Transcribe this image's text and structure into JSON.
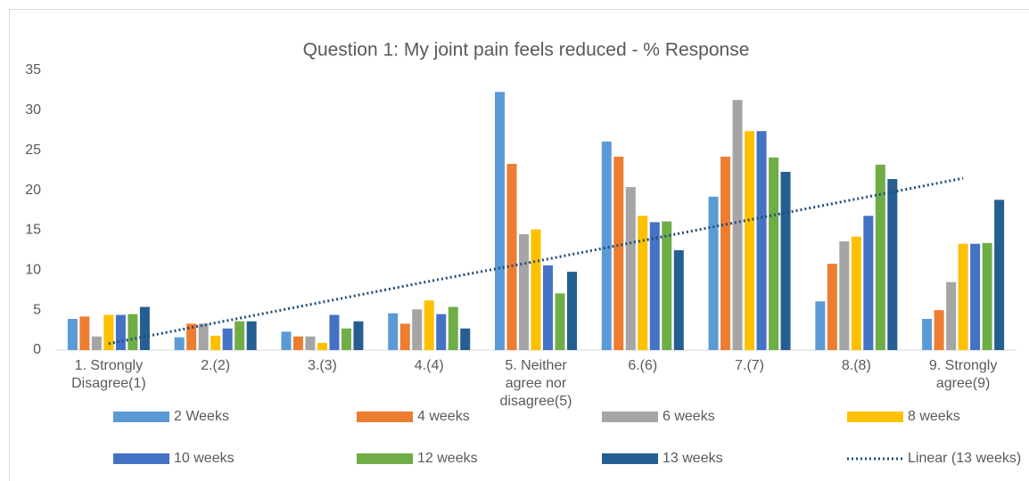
{
  "chart_data": {
    "type": "bar",
    "title": "Question 1: My joint pain feels reduced - % Response",
    "categories": [
      "1. Strongly Disagree(1)",
      "2.(2)",
      "3.(3)",
      "4.(4)",
      "5. Neither agree nor disagree(5)",
      "6.(6)",
      "7.(7)",
      "8.(8)",
      "9. Strongly agree(9)"
    ],
    "series": [
      {
        "name": "2 Weeks",
        "color": "#5b9bd5",
        "values": [
          3.9,
          1.6,
          2.3,
          4.6,
          32.3,
          26.1,
          19.2,
          6.1,
          3.9
        ]
      },
      {
        "name": "4 weeks",
        "color": "#ed7d31",
        "values": [
          4.2,
          3.3,
          1.7,
          3.3,
          23.3,
          24.2,
          24.2,
          10.8,
          5.0
        ]
      },
      {
        "name": "6 weeks",
        "color": "#a5a5a5",
        "values": [
          1.7,
          3.3,
          1.7,
          5.1,
          14.5,
          20.4,
          31.3,
          13.6,
          8.5
        ]
      },
      {
        "name": "8 weeks",
        "color": "#ffc000",
        "values": [
          4.4,
          1.8,
          0.9,
          6.2,
          15.1,
          16.8,
          27.4,
          14.2,
          13.3
        ]
      },
      {
        "name": "10 weeks",
        "color": "#4472c4",
        "values": [
          4.4,
          2.7,
          4.4,
          4.5,
          10.6,
          16.0,
          27.4,
          16.8,
          13.3
        ]
      },
      {
        "name": "12 weeks",
        "color": "#70ad47",
        "values": [
          4.5,
          3.6,
          2.7,
          5.4,
          7.1,
          16.1,
          24.1,
          23.2,
          13.4
        ]
      },
      {
        "name": "13 weeks",
        "color": "#255e91",
        "values": [
          5.4,
          3.6,
          3.6,
          2.7,
          9.8,
          12.5,
          22.3,
          21.4,
          18.8
        ]
      }
    ],
    "trendline": {
      "name": "Linear (13 weeks)",
      "color": "#1f4e79",
      "values": [
        0.8,
        3.4,
        6.0,
        8.6,
        11.1,
        13.7,
        16.3,
        18.9,
        21.5
      ]
    },
    "ylim": [
      0,
      35
    ],
    "yticks": [
      0,
      5,
      10,
      15,
      20,
      25,
      30,
      35
    ],
    "grid": false
  }
}
